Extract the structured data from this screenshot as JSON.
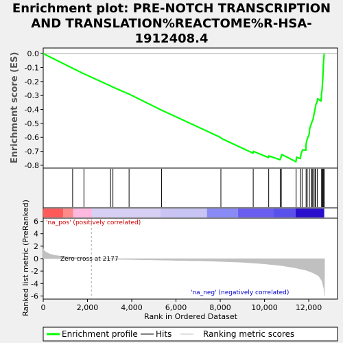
{
  "title_lines": [
    "Enrichment plot: PRE-NOTCH TRANSCRIPTION",
    "AND TRANSLATION%REACTOME%R-HSA-",
    "1912408.4"
  ],
  "chart_data": {
    "type": "line",
    "top_panel": {
      "ylabel": "Enrichment score (ES)",
      "ylim": [
        -0.82,
        0.04
      ],
      "yticks": [
        0.0,
        -0.1,
        -0.2,
        -0.3,
        -0.4,
        -0.5,
        -0.6,
        -0.7,
        -0.8
      ],
      "ytick_labels": [
        "0.0",
        "-0.1",
        "-0.2",
        "-0.3",
        "-0.4",
        "-0.5",
        "-0.6",
        "-0.7",
        "-0.8"
      ],
      "line_color": "#00ff00",
      "es_points": [
        [
          0,
          0.0
        ],
        [
          1330,
          -0.105
        ],
        [
          1840,
          -0.145
        ],
        [
          3040,
          -0.232
        ],
        [
          3150,
          -0.24
        ],
        [
          3880,
          -0.29
        ],
        [
          5350,
          -0.405
        ],
        [
          8010,
          -0.6
        ],
        [
          8050,
          -0.607
        ],
        [
          9480,
          -0.713
        ],
        [
          9500,
          -0.7
        ],
        [
          10180,
          -0.745
        ],
        [
          10200,
          -0.733
        ],
        [
          10700,
          -0.76
        ],
        [
          10740,
          -0.745
        ],
        [
          10780,
          -0.722
        ],
        [
          11420,
          -0.775
        ],
        [
          11450,
          -0.742
        ],
        [
          11620,
          -0.752
        ],
        [
          11650,
          -0.72
        ],
        [
          11720,
          -0.69
        ],
        [
          11870,
          -0.692
        ],
        [
          11880,
          -0.648
        ],
        [
          11930,
          -0.612
        ],
        [
          12020,
          -0.578
        ],
        [
          12040,
          -0.538
        ],
        [
          12110,
          -0.506
        ],
        [
          12150,
          -0.488
        ],
        [
          12200,
          -0.468
        ],
        [
          12220,
          -0.446
        ],
        [
          12270,
          -0.41
        ],
        [
          12290,
          -0.394
        ],
        [
          12320,
          -0.366
        ],
        [
          12380,
          -0.345
        ],
        [
          12400,
          -0.323
        ],
        [
          12560,
          -0.34
        ],
        [
          12580,
          -0.282
        ],
        [
          12600,
          -0.264
        ],
        [
          12620,
          -0.214
        ],
        [
          12640,
          -0.168
        ],
        [
          12660,
          -0.082
        ],
        [
          12700,
          0.0
        ]
      ]
    },
    "hits": [
      1330,
      1840,
      3040,
      3150,
      3880,
      5350,
      8030,
      9490,
      10190,
      10710,
      10760,
      11430,
      11630,
      11700,
      11880,
      11930,
      12030,
      12120,
      12160,
      12210,
      12280,
      12320,
      12390,
      12580,
      12610,
      12640,
      12670,
      12700
    ],
    "bottom_panel": {
      "ylabel": "Ranked list metric (PreRanked)",
      "xlabel": "Rank in Ordered Dataset",
      "ylim": [
        -6.5,
        6.5
      ],
      "yticks": [
        6,
        4,
        2,
        0,
        -2,
        -4,
        -6
      ],
      "ytick_labels": [
        "6",
        "4",
        "2",
        "0",
        "-2",
        "-4",
        "-6"
      ],
      "xlim": [
        0,
        13300
      ],
      "xticks": [
        0,
        2000,
        4000,
        6000,
        8000,
        10000,
        12000
      ],
      "xtick_labels": [
        "0",
        "2,000",
        "4,000",
        "6,000",
        "8,000",
        "10,000",
        "12,000"
      ],
      "fill_color": "#c0c0c0",
      "zero_cross": 2177,
      "metric_points": [
        [
          0,
          1.6
        ],
        [
          60,
          1.25
        ],
        [
          150,
          1.0
        ],
        [
          300,
          0.75
        ],
        [
          500,
          0.55
        ],
        [
          800,
          0.4
        ],
        [
          1200,
          0.25
        ],
        [
          1700,
          0.1
        ],
        [
          2177,
          0.0
        ],
        [
          3500,
          -0.12
        ],
        [
          5500,
          -0.25
        ],
        [
          7500,
          -0.4
        ],
        [
          9000,
          -0.6
        ],
        [
          10000,
          -0.85
        ],
        [
          10800,
          -1.15
        ],
        [
          11400,
          -1.5
        ],
        [
          11900,
          -1.9
        ],
        [
          12200,
          -2.3
        ],
        [
          12450,
          -2.8
        ],
        [
          12600,
          -3.6
        ],
        [
          12680,
          -4.8
        ],
        [
          12710,
          -6.0
        ],
        [
          12720,
          0.0
        ]
      ]
    },
    "annotations": {
      "pos_label": "'na_pos' (positively correlated)",
      "neg_label": "'na_neg' (negatively correlated)",
      "zero_cross_label": "Zero cross at 2177"
    },
    "color_bar": {
      "segments": [
        {
          "from": 0,
          "to": 900,
          "color": "#ff5a5a"
        },
        {
          "from": 900,
          "to": 1350,
          "color": "#ff8a8a"
        },
        {
          "from": 1350,
          "to": 2200,
          "color": "#ffb8e0"
        },
        {
          "from": 2200,
          "to": 5300,
          "color": "#d8d0f4"
        },
        {
          "from": 5300,
          "to": 7400,
          "color": "#c8c4f4"
        },
        {
          "from": 7400,
          "to": 8800,
          "color": "#8a8af6"
        },
        {
          "from": 8800,
          "to": 10400,
          "color": "#6a5ef0"
        },
        {
          "from": 10400,
          "to": 11400,
          "color": "#5a50ec"
        },
        {
          "from": 11400,
          "to": 12700,
          "color": "#2a10cc"
        }
      ]
    },
    "legend": {
      "position": "bottom",
      "items": [
        {
          "label": "Enrichment profile",
          "color": "#00ff00",
          "kind": "thick-line"
        },
        {
          "label": "Hits",
          "color": "#000000",
          "kind": "line"
        },
        {
          "label": "Ranking metric scores",
          "color": "#c0c0c0",
          "kind": "line"
        }
      ]
    }
  }
}
